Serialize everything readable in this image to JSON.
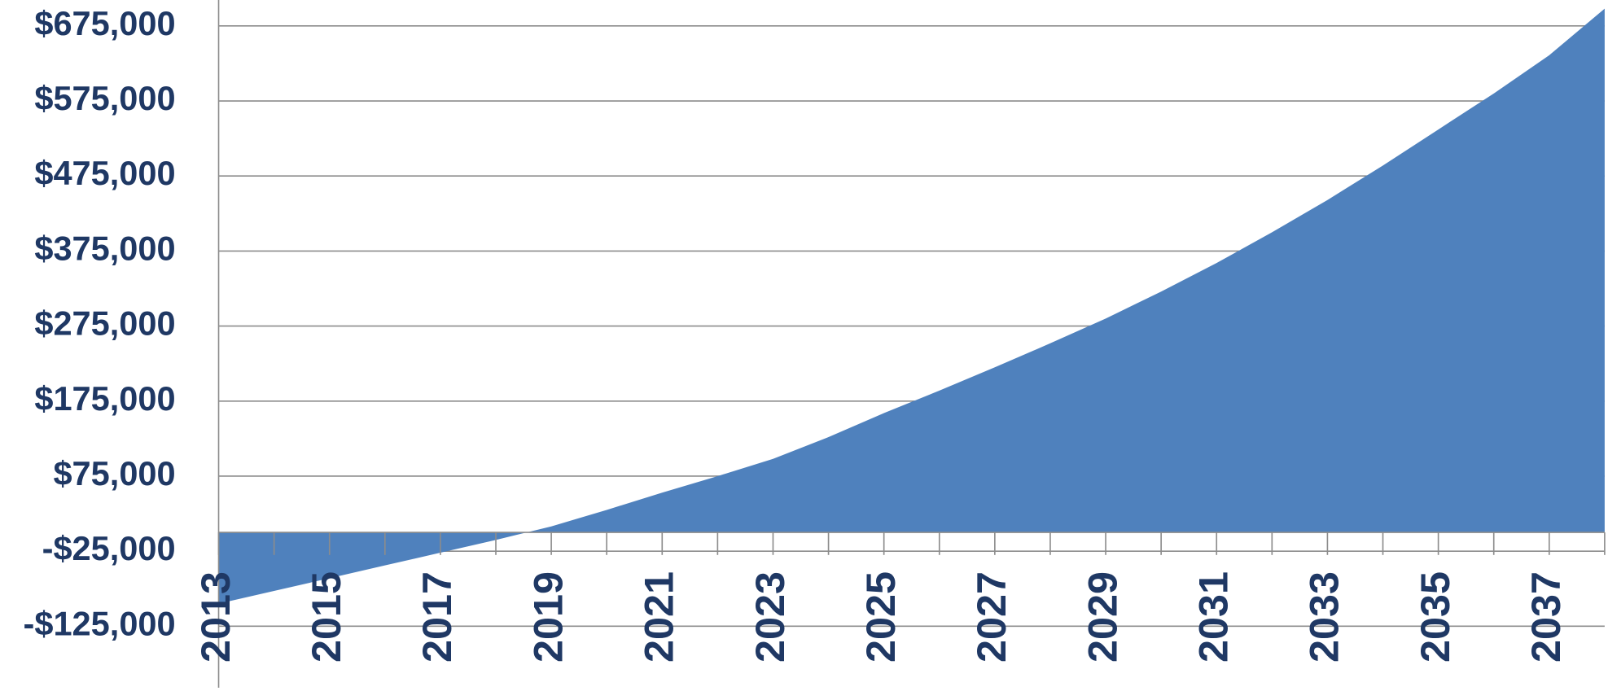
{
  "chart_data": {
    "type": "area",
    "x": [
      2013,
      2014,
      2015,
      2016,
      2017,
      2018,
      2019,
      2020,
      2021,
      2022,
      2023,
      2024,
      2025,
      2026,
      2027,
      2028,
      2029,
      2030,
      2031,
      2032,
      2033,
      2034,
      2035,
      2036,
      2037,
      2038
    ],
    "series": [
      {
        "color": "#4f81bd",
        "values": [
          -95000,
          -78000,
          -61000,
          -44000,
          -27000,
          -10000,
          8000,
          30000,
          53000,
          75000,
          98000,
          127000,
          159000,
          189000,
          220000,
          252000,
          285000,
          321000,
          359000,
          400000,
          443000,
          489000,
          537000,
          585000,
          636000,
          698000
        ]
      }
    ],
    "xlim": [
      2013,
      2038
    ],
    "xticks": [
      2013,
      2015,
      2017,
      2019,
      2021,
      2023,
      2025,
      2027,
      2029,
      2031,
      2033,
      2035,
      2037
    ],
    "ylim": [
      -125000,
      700000
    ],
    "yticks": [
      {
        "value": -125000,
        "label": "-$125,000"
      },
      {
        "value": -25000,
        "label": "-$25,000"
      },
      {
        "value": 75000,
        "label": "$75,000"
      },
      {
        "value": 175000,
        "label": "$175,000"
      },
      {
        "value": 275000,
        "label": "$275,000"
      },
      {
        "value": 375000,
        "label": "$375,000"
      },
      {
        "value": 475000,
        "label": "$475,000"
      },
      {
        "value": 575000,
        "label": "$575,000"
      },
      {
        "value": 675000,
        "label": "$675,000"
      }
    ],
    "grid": true
  }
}
